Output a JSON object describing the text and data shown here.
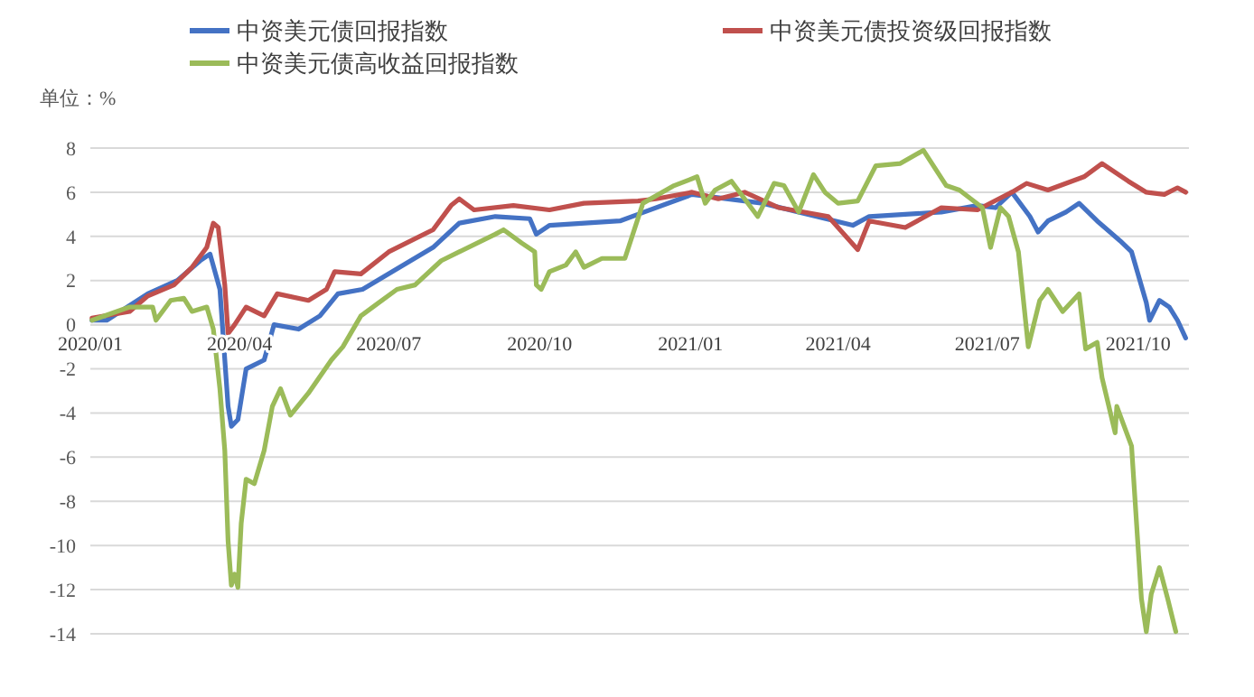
{
  "chart_data": {
    "type": "line",
    "ylabel": "单位：%",
    "legend": "top",
    "grid": "y",
    "line_style": "solid",
    "marker": "none",
    "xlim": [
      "2020-01-01",
      "2021-11-01"
    ],
    "ylim": [
      -14,
      8
    ],
    "xticks": [
      {
        "value": "2020-01-01",
        "label": "2020/01"
      },
      {
        "value": "2020-04-01",
        "label": "2020/04"
      },
      {
        "value": "2020-07-01",
        "label": "2020/07"
      },
      {
        "value": "2020-10-01",
        "label": "2020/10"
      },
      {
        "value": "2021-01-01",
        "label": "2021/01"
      },
      {
        "value": "2021-04-01",
        "label": "2021/04"
      },
      {
        "value": "2021-07-01",
        "label": "2021/07"
      },
      {
        "value": "2021-10-01",
        "label": "2021/10"
      }
    ],
    "yticks": [
      -14,
      -12,
      -10,
      -8,
      -6,
      -4,
      -2,
      0,
      2,
      4,
      6,
      8
    ],
    "series": [
      {
        "name": "中资美元债回报指数",
        "color": "#4472c4",
        "x": [
          "2020-01-02",
          "2020-01-11",
          "2020-02-05",
          "2020-02-23",
          "2020-03-08",
          "2020-03-14",
          "2020-03-20",
          "2020-03-25",
          "2020-03-27",
          "2020-03-31",
          "2020-04-05",
          "2020-04-16",
          "2020-04-22",
          "2020-05-07",
          "2020-05-20",
          "2020-05-31",
          "2020-06-15",
          "2020-07-03",
          "2020-07-28",
          "2020-08-13",
          "2020-09-04",
          "2020-09-25",
          "2020-09-29",
          "2020-10-07",
          "2020-11-19",
          "2020-11-30",
          "2021-01-02",
          "2021-02-14",
          "2021-03-08",
          "2021-04-10",
          "2021-04-20",
          "2021-06-03",
          "2021-06-25",
          "2021-07-06",
          "2021-07-16",
          "2021-07-27",
          "2021-08-01",
          "2021-08-07",
          "2021-08-18",
          "2021-08-26",
          "2021-09-06",
          "2021-09-20",
          "2021-09-27",
          "2021-10-06",
          "2021-10-08",
          "2021-10-14",
          "2021-10-20",
          "2021-10-25",
          "2021-10-30"
        ],
        "values": [
          0.2,
          0.2,
          1.4,
          2.0,
          2.9,
          3.2,
          1.6,
          -3.7,
          -4.6,
          -4.3,
          -2.0,
          -1.6,
          0,
          -0.2,
          0.4,
          1.4,
          1.6,
          2.4,
          3.5,
          4.6,
          4.9,
          4.8,
          4.1,
          4.5,
          4.7,
          5.0,
          5.9,
          5.5,
          5.1,
          4.5,
          4.9,
          5.1,
          5.4,
          5.3,
          6.0,
          4.9,
          4.2,
          4.7,
          5.1,
          5.5,
          4.7,
          3.8,
          3.3,
          1.0,
          0.2,
          1.1,
          0.8,
          0.2,
          -0.6
        ]
      },
      {
        "name": "中资美元债投资级回报指数",
        "color": "#c0504d",
        "x": [
          "2020-01-02",
          "2020-01-25",
          "2020-02-05",
          "2020-02-21",
          "2020-03-03",
          "2020-03-12",
          "2020-03-16",
          "2020-03-19",
          "2020-03-23",
          "2020-03-25",
          "2020-03-29",
          "2020-04-05",
          "2020-04-16",
          "2020-04-24",
          "2020-05-13",
          "2020-05-24",
          "2020-05-29",
          "2020-06-14",
          "2020-07-01",
          "2020-07-28",
          "2020-08-08",
          "2020-08-13",
          "2020-08-22",
          "2020-09-15",
          "2020-10-07",
          "2020-10-28",
          "2020-11-30",
          "2020-12-11",
          "2021-01-02",
          "2021-01-18",
          "2021-02-03",
          "2021-02-24",
          "2021-03-26",
          "2021-04-13",
          "2021-04-20",
          "2021-05-12",
          "2021-06-03",
          "2021-06-25",
          "2021-07-08",
          "2021-07-16",
          "2021-07-25",
          "2021-08-07",
          "2021-08-29",
          "2021-09-09",
          "2021-09-25",
          "2021-10-06",
          "2021-10-17",
          "2021-10-25",
          "2021-10-30"
        ],
        "values": [
          0.3,
          0.6,
          1.3,
          1.8,
          2.6,
          3.5,
          4.6,
          4.4,
          1.8,
          -0.4,
          0,
          0.8,
          0.4,
          1.4,
          1.1,
          1.6,
          2.4,
          2.3,
          3.3,
          4.3,
          5.4,
          5.7,
          5.2,
          5.4,
          5.2,
          5.5,
          5.6,
          5.7,
          6.0,
          5.7,
          6.0,
          5.3,
          4.9,
          3.4,
          4.7,
          4.4,
          5.3,
          5.2,
          5.7,
          6.0,
          6.4,
          6.1,
          6.7,
          7.3,
          6.5,
          6.0,
          5.9,
          6.2,
          6.0
        ]
      },
      {
        "name": "中资美元债高收益回报指数",
        "color": "#9bbb59",
        "x": [
          "2020-01-02",
          "2020-01-25",
          "2020-02-08",
          "2020-02-10",
          "2020-02-19",
          "2020-02-27",
          "2020-03-03",
          "2020-03-12",
          "2020-03-16",
          "2020-03-20",
          "2020-03-23",
          "2020-03-25",
          "2020-03-27",
          "2020-03-29",
          "2020-03-31",
          "2020-04-02",
          "2020-04-05",
          "2020-04-10",
          "2020-04-16",
          "2020-04-21",
          "2020-04-26",
          "2020-05-02",
          "2020-05-13",
          "2020-05-27",
          "2020-06-03",
          "2020-06-14",
          "2020-06-25",
          "2020-07-06",
          "2020-07-17",
          "2020-08-02",
          "2020-08-13",
          "2020-09-04",
          "2020-09-09",
          "2020-09-20",
          "2020-09-28",
          "2020-09-29",
          "2020-10-02",
          "2020-10-07",
          "2020-10-17",
          "2020-10-23",
          "2020-10-28",
          "2020-11-08",
          "2020-11-22",
          "2020-12-03",
          "2020-12-22",
          "2021-01-05",
          "2021-01-10",
          "2021-01-16",
          "2021-01-26",
          "2021-02-11",
          "2021-02-21",
          "2021-02-27",
          "2021-03-08",
          "2021-03-17",
          "2021-03-24",
          "2021-04-01",
          "2021-04-13",
          "2021-04-24",
          "2021-05-09",
          "2021-05-23",
          "2021-06-06",
          "2021-06-14",
          "2021-06-28",
          "2021-07-03",
          "2021-07-09",
          "2021-07-14",
          "2021-07-20",
          "2021-07-26",
          "2021-08-02",
          "2021-08-07",
          "2021-08-16",
          "2021-08-26",
          "2021-08-30",
          "2021-09-06",
          "2021-09-09",
          "2021-09-17",
          "2021-09-18",
          "2021-09-27",
          "2021-10-03",
          "2021-10-06",
          "2021-10-09",
          "2021-10-14",
          "2021-10-19",
          "2021-10-24"
        ],
        "values": [
          0.2,
          0.8,
          0.8,
          0.2,
          1.1,
          1.2,
          0.6,
          0.8,
          -0.2,
          -2.9,
          -5.7,
          -9.8,
          -11.8,
          -11.3,
          -11.9,
          -9.0,
          -7.0,
          -7.2,
          -5.7,
          -3.7,
          -2.9,
          -4.1,
          -3.1,
          -1.6,
          -1.0,
          0.4,
          1.0,
          1.6,
          1.8,
          2.9,
          3.3,
          4.1,
          4.3,
          3.7,
          3.3,
          1.8,
          1.6,
          2.4,
          2.7,
          3.3,
          2.6,
          3.0,
          3.0,
          5.5,
          6.3,
          6.7,
          5.5,
          6.1,
          6.5,
          4.9,
          6.4,
          6.3,
          5.1,
          6.8,
          6.0,
          5.5,
          5.6,
          7.2,
          7.3,
          7.9,
          6.3,
          6.1,
          5.3,
          3.5,
          5.3,
          4.9,
          3.3,
          -1.0,
          1.1,
          1.6,
          0.6,
          1.4,
          -1.1,
          -0.8,
          -2.4,
          -4.9,
          -3.7,
          -5.5,
          -12.4,
          -13.9,
          -12.2,
          -11.0,
          -12.4,
          -13.9
        ]
      }
    ]
  }
}
